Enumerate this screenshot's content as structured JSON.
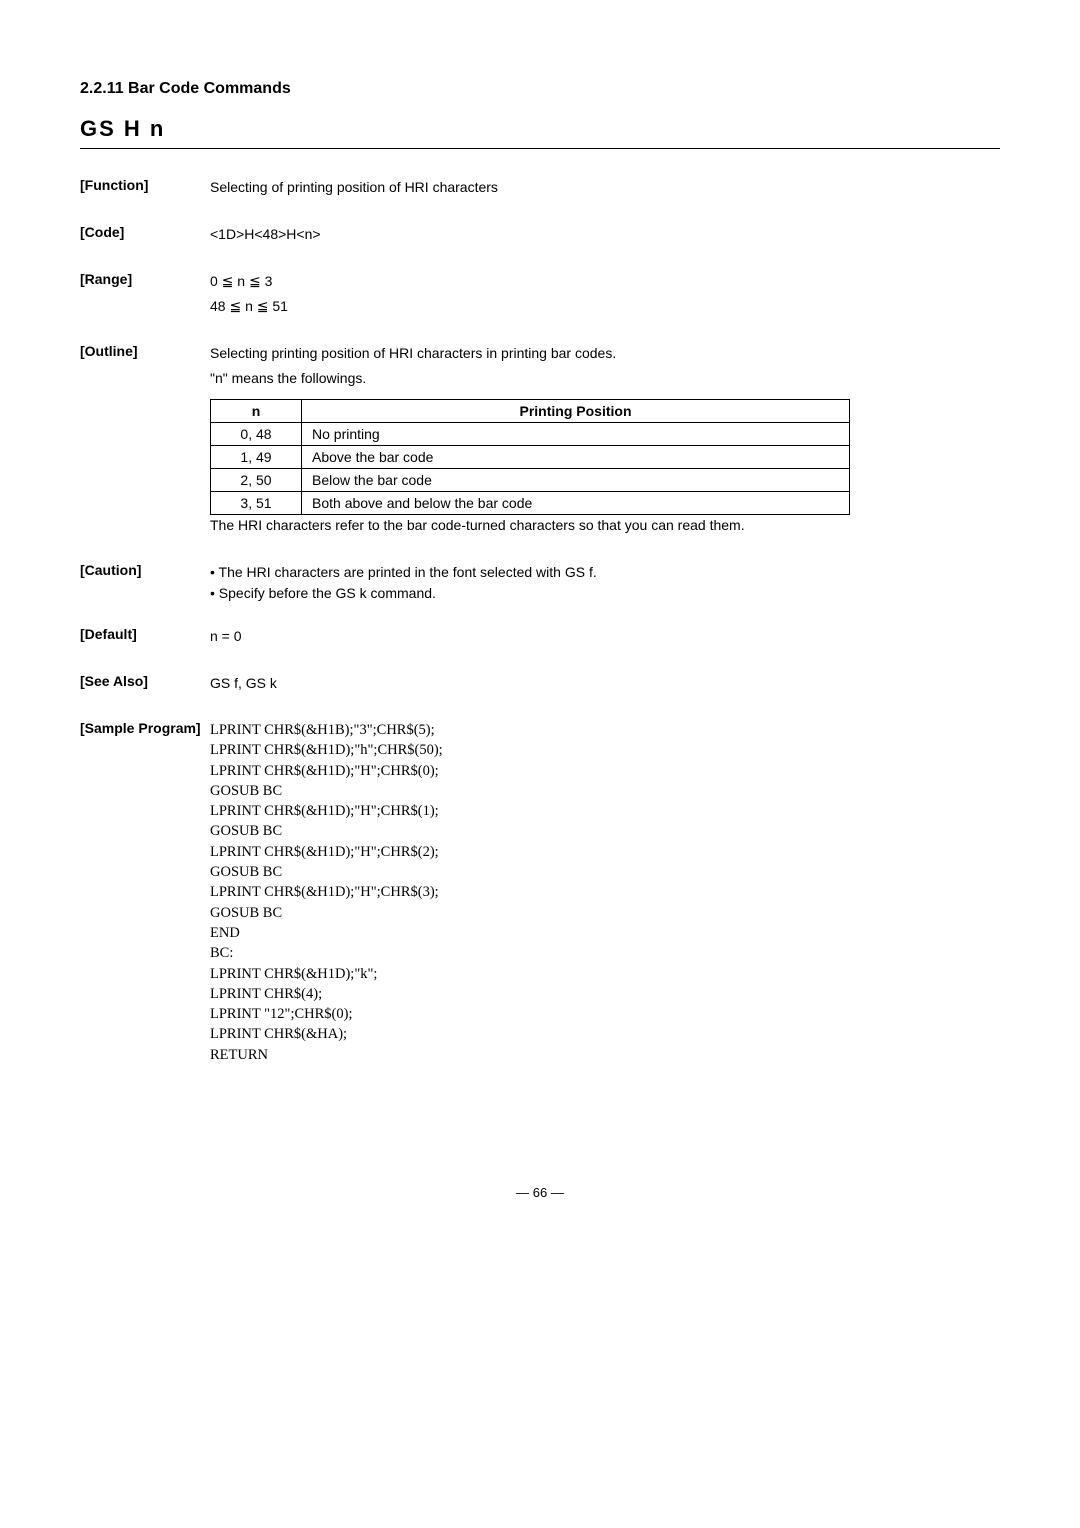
{
  "section": {
    "heading": "2.2.11  Bar Code Commands",
    "command_title": "GS  H  n"
  },
  "function": {
    "label": "[Function]",
    "text": "Selecting of printing position of HRI characters"
  },
  "code": {
    "label": "[Code]",
    "text": "<1D>H<48>H<n>"
  },
  "range": {
    "label": "[Range]",
    "line1": "0 ≦ n ≦ 3",
    "line2": "48 ≦ n ≦ 51"
  },
  "outline": {
    "label": "[Outline]",
    "line1": "Selecting printing position of HRI characters in printing bar codes.",
    "line2": "\"n\" means the followings.",
    "table": {
      "headers": {
        "n": "n",
        "pos": "Printing Position"
      },
      "rows": [
        {
          "n": "0, 48",
          "pos": "No printing"
        },
        {
          "n": "1, 49",
          "pos": "Above the bar code"
        },
        {
          "n": "2, 50",
          "pos": "Below the bar code"
        },
        {
          "n": "3, 51",
          "pos": "Both above and below the bar code"
        }
      ]
    },
    "note": "The HRI characters refer to the bar code-turned characters so that you can read them."
  },
  "caution": {
    "label": "[Caution]",
    "items": [
      "The HRI characters are printed in the font selected with GS f.",
      "Specify before the GS k command."
    ]
  },
  "default_": {
    "label": "[Default]",
    "text": "n = 0"
  },
  "see_also": {
    "label": "[See Also]",
    "text": "GS f, GS k"
  },
  "sample": {
    "label": "[Sample Program]",
    "lines": [
      "LPRINT CHR$(&H1B);\"3\";CHR$(5);",
      "LPRINT CHR$(&H1D);\"h\";CHR$(50);",
      "LPRINT CHR$(&H1D);\"H\";CHR$(0);",
      "GOSUB BC",
      "LPRINT CHR$(&H1D);\"H\";CHR$(1);",
      "GOSUB BC",
      "LPRINT CHR$(&H1D);\"H\";CHR$(2);",
      "GOSUB BC",
      "LPRINT CHR$(&H1D);\"H\";CHR$(3);",
      "GOSUB BC",
      "END",
      "BC:",
      "LPRINT CHR$(&H1D);\"k\";",
      "LPRINT CHR$(4);",
      "LPRINT \"12\";CHR$(0);",
      "LPRINT CHR$(&HA);",
      "RETURN"
    ]
  },
  "page_number": "— 66 —"
}
